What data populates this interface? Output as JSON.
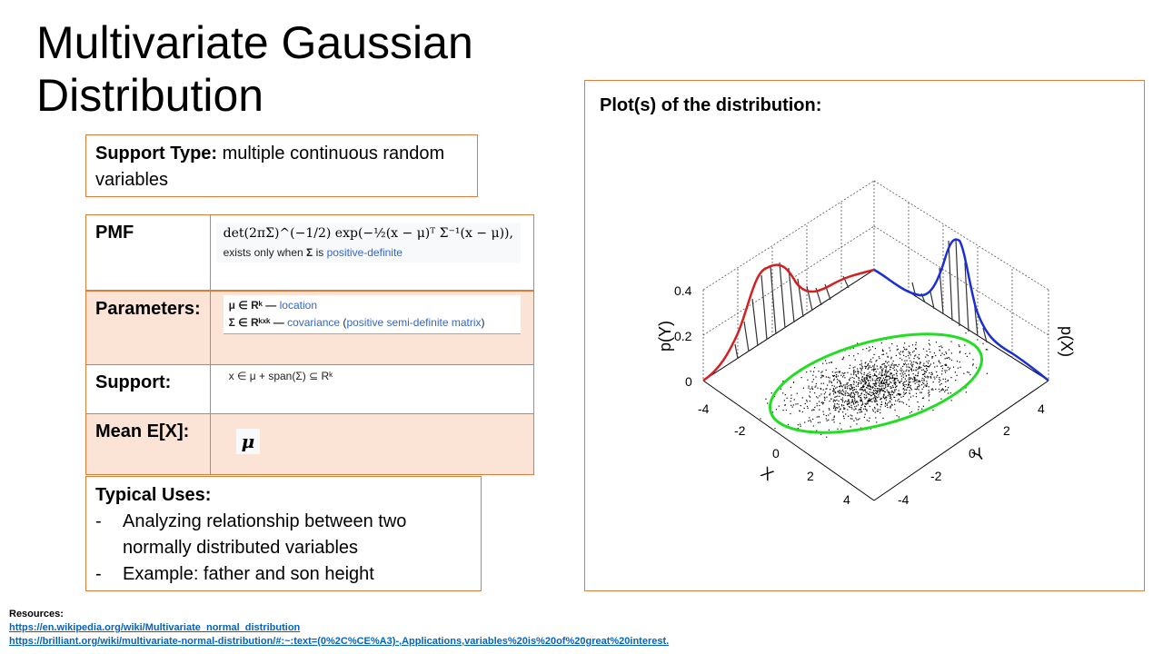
{
  "slide": {
    "title_line1": "Multivariate Gaussian",
    "title_line2": "Distribution"
  },
  "support_type": {
    "label": "Support Type:",
    "value": "multiple continuous random variables"
  },
  "table": {
    "pmf_label": "PMF",
    "pmf_formula": "det(2πΣ)^(−1/2) exp(−½(x − μ)ᵀ Σ⁻¹(x − μ)),",
    "pmf_note_prefix": "exists only when",
    "pmf_note_sigma": "Σ",
    "pmf_note_is": "is",
    "pmf_note_link": "positive-definite",
    "parameters_label": "Parameters:",
    "param1_math": "μ ∈ Rᵏ —",
    "param1_link": "location",
    "param2_math": "Σ ∈ Rᵏˣᵏ —",
    "param2_link": "covariance",
    "param2_link2": "positive semi-definite matrix",
    "support_label": "Support:",
    "support_value": "x ∈ μ + span(Σ) ⊆ Rᵏ",
    "mean_label": "Mean E[X]:",
    "mean_value": "μ"
  },
  "typical_uses": {
    "heading": "Typical Uses:",
    "items": [
      "Analyzing relationship between two normally distributed variables",
      "Example: father and son height"
    ]
  },
  "plot": {
    "title": "Plot(s) of the distribution:",
    "ylabel_left": "p(Y)",
    "ylabel_right": "p(X)",
    "x_axis_label": "X",
    "y_axis_label": "Y",
    "z_ticks": [
      "0.4",
      "0.2",
      "0"
    ],
    "x_ticks": [
      "-4",
      "-2",
      "0",
      "2",
      "4"
    ],
    "y_ticks": [
      "4",
      "2",
      "0",
      "-2",
      "-4"
    ],
    "colors": {
      "left_curve": "#d42020",
      "right_curve": "#1a2ed8",
      "ellipse": "#22dd22",
      "border": "#e07b39"
    }
  },
  "resources": {
    "heading": "Resources:",
    "link1": "https://en.wikipedia.org/wiki/Multivariate_normal_distribution",
    "link2": "https://brilliant.org/wiki/multivariate-normal-distribution/#:~:text=(0%2C%CE%A3)-,Applications,variables%20is%20of%20great%20interest."
  }
}
